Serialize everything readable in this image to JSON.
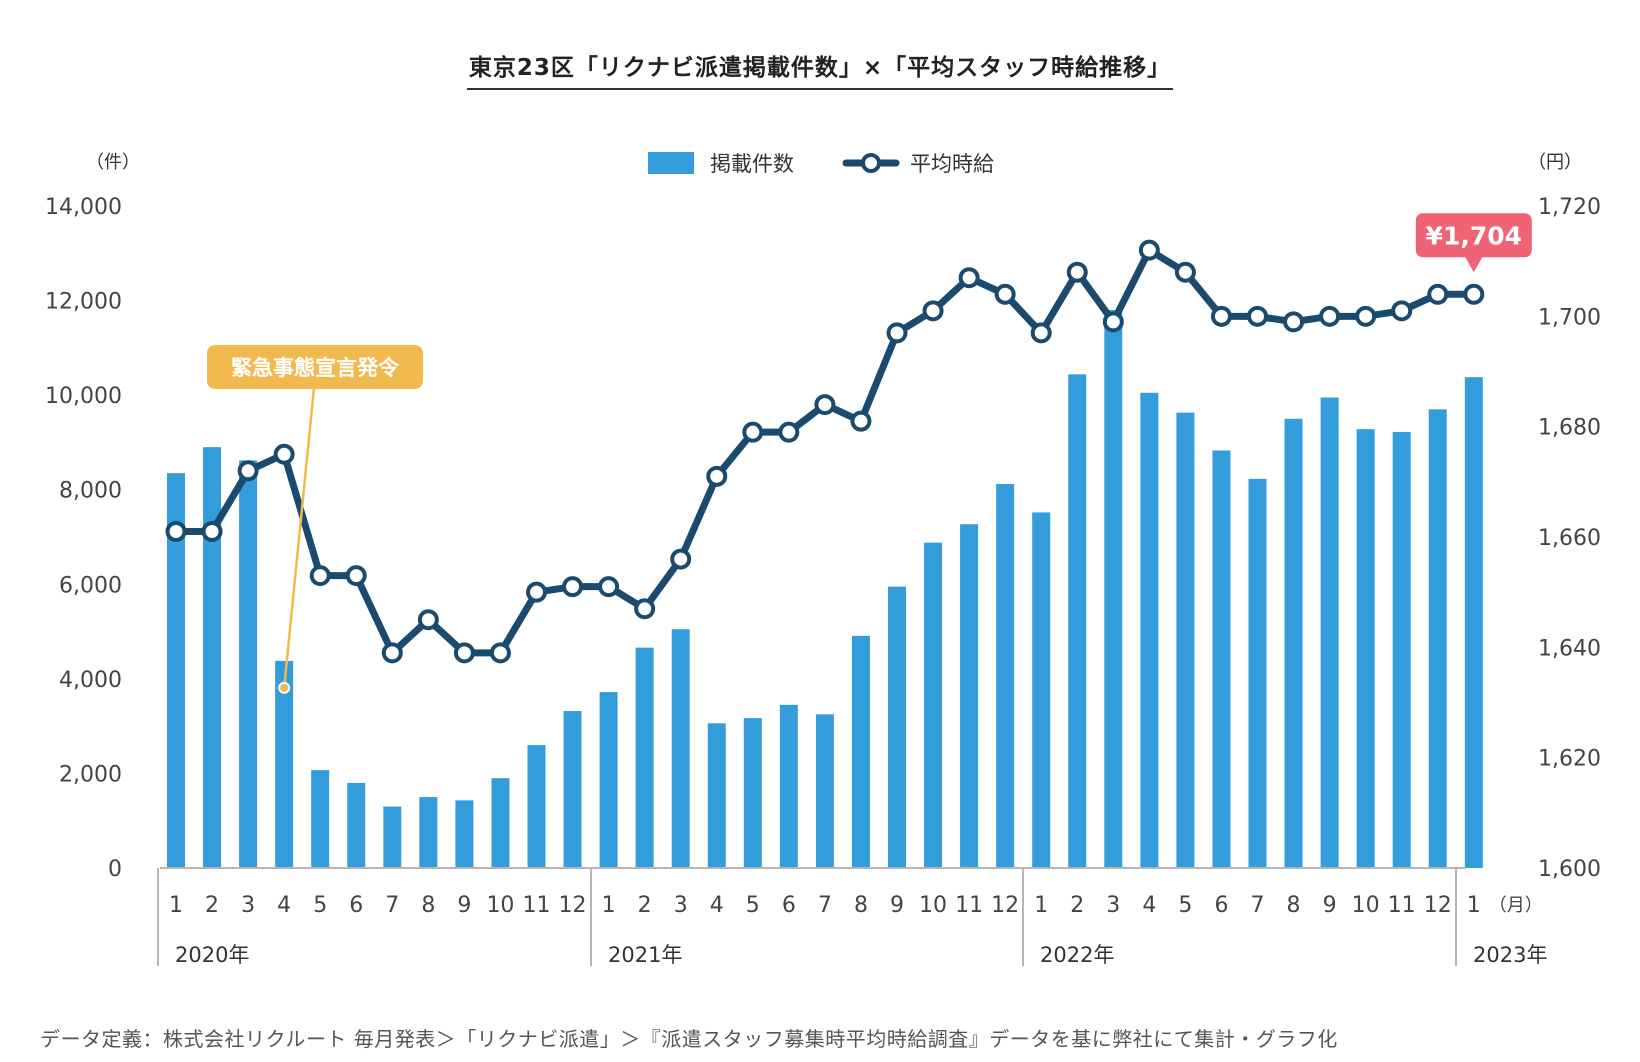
{
  "title": "東京23区「リクナビ派遣掲載件数」×「平均スタッフ時給推移」",
  "footnote": "データ定義：株式会社リクルート 毎月発表＞「リクナビ派遣」＞『派遣スタッフ募集時平均時給調査』データを基に弊社にて集計・グラフ化",
  "chart_data": {
    "type": "bar",
    "left_unit": "（件）",
    "right_unit": "（円）",
    "month_unit": "（月）",
    "categories": [
      "1",
      "2",
      "3",
      "4",
      "5",
      "6",
      "7",
      "8",
      "9",
      "10",
      "11",
      "12",
      "1",
      "2",
      "3",
      "4",
      "5",
      "6",
      "7",
      "8",
      "9",
      "10",
      "11",
      "12",
      "1",
      "2",
      "3",
      "4",
      "5",
      "6",
      "7",
      "8",
      "9",
      "10",
      "11",
      "12",
      "1"
    ],
    "year_labels": [
      {
        "label": "2020年",
        "start_index": 0
      },
      {
        "label": "2021年",
        "start_index": 12
      },
      {
        "label": "2022年",
        "start_index": 24
      },
      {
        "label": "2023年",
        "start_index": 36
      }
    ],
    "left_axis": {
      "ylim": [
        0,
        14000
      ],
      "ticks": [
        "0",
        "2,000",
        "4,000",
        "6,000",
        "8,000",
        "10,000",
        "12,000",
        "14,000"
      ]
    },
    "right_axis": {
      "ylim": [
        1600,
        1720
      ],
      "ticks": [
        "1,600",
        "1,620",
        "1,640",
        "1,660",
        "1,680",
        "1,700",
        "1,720"
      ]
    },
    "series": [
      {
        "name": "掲載件数",
        "type": "bar",
        "axis": "left",
        "color": "#339ddb",
        "values": [
          8350,
          8900,
          8620,
          4380,
          2070,
          1800,
          1300,
          1500,
          1430,
          1900,
          2600,
          3320,
          3720,
          4660,
          5050,
          3060,
          3170,
          3450,
          3250,
          4910,
          5950,
          6880,
          7270,
          8120,
          7520,
          10440,
          11800,
          10050,
          9630,
          8830,
          8230,
          9500,
          9950,
          9280,
          9220,
          9700,
          10380
        ]
      },
      {
        "name": "平均時給",
        "type": "line",
        "axis": "right",
        "color": "#1a4a6e",
        "values": [
          1661,
          1661,
          1672,
          1675,
          1653,
          1653,
          1639,
          1645,
          1639,
          1639,
          1650,
          1651,
          1651,
          1647,
          1656,
          1671,
          1679,
          1679,
          1684,
          1681,
          1697,
          1701,
          1707,
          1704,
          1697,
          1708,
          1699,
          1712,
          1708,
          1700,
          1700,
          1699,
          1700,
          1700,
          1701,
          1704,
          1704
        ]
      }
    ],
    "annotations": [
      {
        "text": "緊急事態宣言発令",
        "index": 3,
        "color": "#f2b94f"
      },
      {
        "text": "¥1,704",
        "index": 36,
        "color": "#ef6375"
      }
    ],
    "legend_position": "top-center",
    "grid": false
  }
}
